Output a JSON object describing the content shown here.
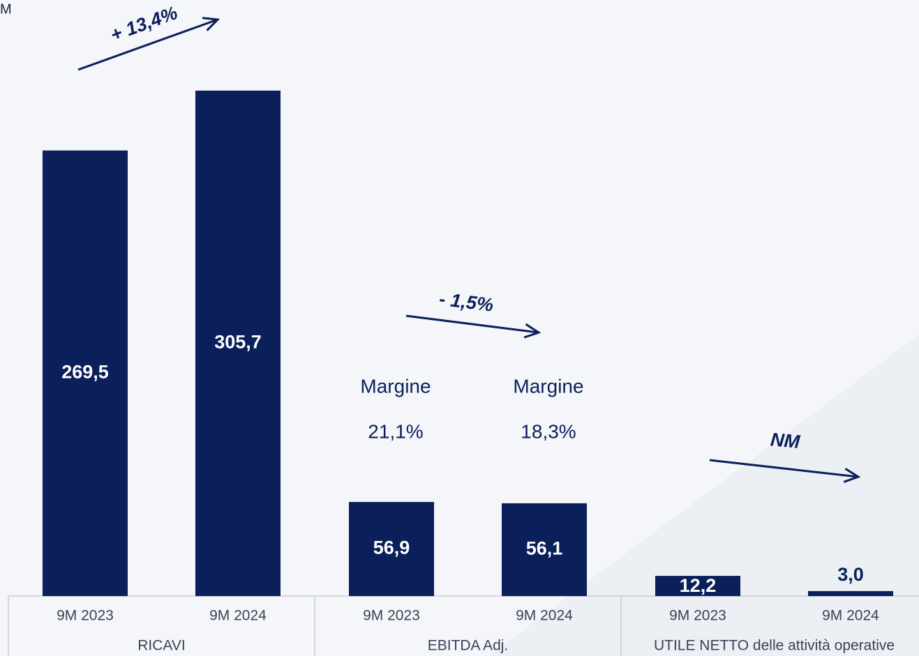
{
  "chart_data": {
    "type": "bar",
    "unit": "M",
    "color": "#0b1f5a",
    "groups": [
      {
        "name": "RICAVI",
        "change": "+ 13,4%",
        "categories": [
          "9M 2023",
          "9M 2024"
        ],
        "values": [
          269.5,
          305.7
        ],
        "value_labels": [
          "269,5",
          "305,7"
        ]
      },
      {
        "name": "EBITDA Adj.",
        "change": "- 1,5%",
        "categories": [
          "9M 2023",
          "9M 2024"
        ],
        "values": [
          56.9,
          56.1
        ],
        "value_labels": [
          "56,9",
          "56,1"
        ],
        "margin_title": "Margine",
        "margins": [
          {
            "value": 21.1,
            "label": "21,1%"
          },
          {
            "value": 18.3,
            "label": "18,3%"
          }
        ]
      },
      {
        "name": "UTILE NETTO delle attività operative",
        "change": "NM",
        "categories": [
          "9M 2023",
          "9M 2024"
        ],
        "values": [
          12.2,
          3.0
        ],
        "value_labels": [
          "12,2",
          "3,0"
        ]
      }
    ]
  }
}
